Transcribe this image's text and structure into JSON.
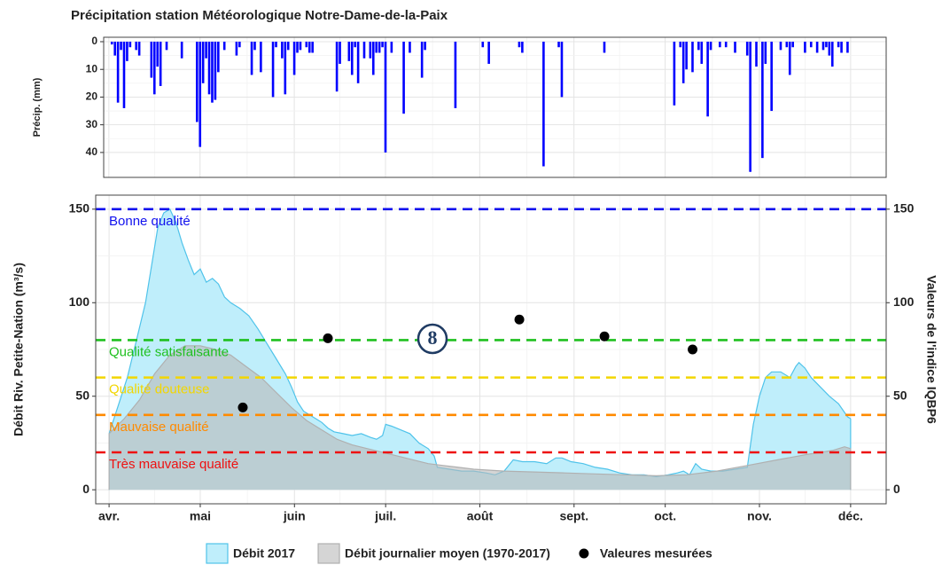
{
  "chart_data": [
    {
      "type": "bar",
      "title": "Précipitation station Météorologique Notre-Dame-de-la-Paix",
      "y_label": "Précip. (mm)",
      "x": [
        1,
        2,
        3,
        4,
        5,
        6,
        7,
        9,
        10,
        14,
        15,
        16,
        17,
        19,
        24,
        29,
        30,
        31,
        32,
        33,
        34,
        35,
        36,
        38,
        42,
        43,
        47,
        48,
        50,
        54,
        55,
        57,
        58,
        59,
        61,
        62,
        63,
        65,
        66,
        67,
        75,
        76,
        79,
        80,
        81,
        82,
        84,
        86,
        87,
        88,
        89,
        90,
        91,
        93,
        97,
        99,
        103,
        104,
        114,
        123,
        125,
        135,
        136,
        143,
        148,
        149,
        163,
        186,
        188,
        189,
        190,
        192,
        194,
        195,
        197,
        198,
        201,
        203,
        206,
        210,
        211,
        213,
        215,
        216,
        218,
        221,
        223,
        224,
        225,
        229,
        231,
        233,
        235,
        236,
        237,
        238,
        240,
        241,
        243
      ],
      "values": [
        1,
        5,
        22,
        3,
        24,
        7,
        2,
        3,
        5,
        13,
        19,
        9,
        16,
        3,
        6,
        29,
        38,
        15,
        6,
        19,
        22,
        21,
        11,
        3,
        5,
        2,
        12,
        3,
        11,
        20,
        2,
        6,
        19,
        3,
        12,
        4,
        3,
        2,
        4,
        4,
        18,
        8,
        7,
        12,
        2,
        15,
        6,
        6,
        12,
        4,
        4,
        2,
        40,
        4,
        26,
        4,
        13,
        3,
        24,
        2,
        8,
        2,
        4,
        45,
        2,
        20,
        4,
        23,
        2,
        15,
        10,
        11,
        3,
        8,
        27,
        3,
        2,
        2,
        4,
        5,
        47,
        9,
        42,
        8,
        25,
        3,
        2,
        12,
        2,
        4,
        2,
        4,
        3,
        2,
        5,
        9,
        2,
        4,
        4
      ],
      "color": "#0000ff",
      "xlim": [
        -1.7,
        255.7
      ],
      "ylim": [
        -1.6,
        49
      ],
      "yticks": [
        0,
        10,
        20,
        30,
        40
      ],
      "reverse": true,
      "grid": true
    },
    {
      "type": "area",
      "y_label": "Débit Riv. Petite-Nation (m³/s)",
      "y2_label": "Valeurs de l'indice IQBP6",
      "xlim": [
        -4.4,
        255.7
      ],
      "ylim": [
        -7.5,
        157.5
      ],
      "y2lim": [
        -7.5,
        157.5
      ],
      "xticks": [
        {
          "value": 0,
          "label": "avr."
        },
        {
          "value": 30,
          "label": "mai"
        },
        {
          "value": 61,
          "label": "juin"
        },
        {
          "value": 91,
          "label": "juil."
        },
        {
          "value": 122,
          "label": "août"
        },
        {
          "value": 153,
          "label": "sept."
        },
        {
          "value": 183,
          "label": "oct."
        },
        {
          "value": 214,
          "label": "nov."
        },
        {
          "value": 244,
          "label": "déc."
        }
      ],
      "yticks": [
        0,
        50,
        100,
        150
      ],
      "y2ticks": [
        0,
        50,
        100,
        150
      ],
      "grid": true,
      "legend": "bottom",
      "series": [
        {
          "name": "Débit 2017",
          "type": "area",
          "color": "#4fc3ea",
          "fill": "#bfeefb",
          "x": [
            0,
            3,
            6,
            9,
            12,
            14,
            16,
            18,
            20,
            22,
            24,
            26,
            28,
            30,
            32,
            34,
            36,
            38,
            40,
            43,
            46,
            49,
            52,
            55,
            58,
            60,
            62,
            64,
            66,
            68,
            70,
            72,
            74,
            77,
            80,
            83,
            86,
            88,
            90,
            91,
            93,
            96,
            99,
            102,
            105,
            107,
            108,
            112,
            116,
            120,
            124,
            127,
            130,
            133,
            136,
            140,
            144,
            147,
            149,
            152,
            156,
            160,
            164,
            168,
            172,
            176,
            180,
            184,
            187,
            189,
            191,
            193,
            195,
            198,
            202,
            206,
            210,
            212,
            214,
            216,
            218,
            221,
            224,
            226,
            227,
            229,
            231,
            234,
            237,
            240,
            243,
            244
          ],
          "values": [
            30,
            45,
            60,
            80,
            100,
            120,
            140,
            148,
            150,
            143,
            132,
            123,
            115,
            118,
            111,
            113,
            110,
            103,
            100,
            97,
            93,
            86,
            78,
            70,
            62,
            55,
            47,
            42,
            40,
            38,
            36,
            33,
            31,
            30,
            29,
            30,
            28,
            27,
            29,
            35,
            34,
            32,
            30,
            25,
            22,
            18,
            12,
            11,
            10,
            10,
            9,
            8,
            10,
            16,
            15,
            15,
            14,
            17,
            17,
            15,
            14,
            12,
            11,
            9,
            8,
            8,
            7,
            8,
            9,
            10,
            8,
            14,
            11,
            10,
            10,
            11,
            12,
            35,
            50,
            60,
            63,
            63,
            60,
            66,
            68,
            65,
            60,
            55,
            50,
            46,
            39,
            38
          ]
        },
        {
          "name": "Débit journalier moyen (1970-2017)",
          "type": "area",
          "color": "#b0b0b0",
          "fill": "rgba(185,185,185,0.6)",
          "x": [
            0,
            5,
            10,
            15,
            20,
            25,
            30,
            35,
            40,
            45,
            50,
            55,
            60,
            65,
            70,
            75,
            80,
            85,
            90,
            95,
            100,
            105,
            110,
            115,
            120,
            130,
            140,
            150,
            160,
            170,
            180,
            190,
            200,
            210,
            220,
            230,
            238,
            242,
            244
          ],
          "values": [
            30,
            38,
            48,
            62,
            72,
            77,
            77,
            75,
            72,
            66,
            60,
            52,
            44,
            37,
            32,
            27,
            24,
            22,
            20,
            18,
            16,
            14,
            13,
            12,
            11,
            10,
            9.5,
            9,
            8.5,
            8,
            7.5,
            8,
            10,
            13,
            16,
            19,
            21,
            23,
            22
          ]
        },
        {
          "name": "Valeures mesurées",
          "type": "scatter",
          "axis": "y2",
          "color": "#000000",
          "x": [
            44,
            72,
            135,
            163,
            192
          ],
          "values": [
            44,
            81,
            91,
            82,
            75
          ]
        }
      ],
      "thresholds": [
        {
          "value": 150,
          "label": "Bonne qualité",
          "color": "#1111ee"
        },
        {
          "value": 80,
          "label": "Qualité satisfaisante",
          "color": "#1fc01f"
        },
        {
          "value": 60,
          "label": "Qualité douteuse",
          "color": "#f2d600"
        },
        {
          "value": 40,
          "label": "Mauvaise qualité",
          "color": "#ff8a00"
        },
        {
          "value": 20,
          "label": "Très mauvaise qualité",
          "color": "#ee1111"
        }
      ],
      "badge": "8"
    }
  ]
}
